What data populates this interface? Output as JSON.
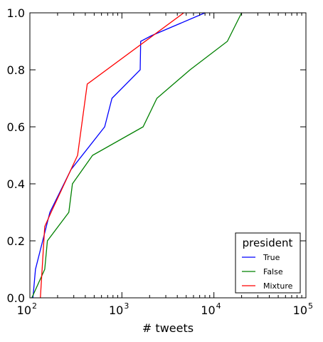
{
  "chart_data": {
    "type": "line",
    "xlabel": "# tweets",
    "ylabel": "",
    "xscale": "log",
    "xlim": [
      100,
      100000
    ],
    "ylim": [
      0.0,
      1.0
    ],
    "grid": false,
    "x_tick_labels": [
      {
        "value": 100,
        "base": "10",
        "exp": "2"
      },
      {
        "value": 1000,
        "base": "10",
        "exp": "3"
      },
      {
        "value": 10000,
        "base": "10",
        "exp": "4"
      },
      {
        "value": 100000,
        "base": "10",
        "exp": "5"
      }
    ],
    "y_ticks": [
      0.0,
      0.2,
      0.4,
      0.6,
      0.8,
      1.0
    ],
    "y_tick_labels": [
      "0.0",
      "0.2",
      "0.4",
      "0.6",
      "0.8",
      "1.0"
    ],
    "legend": {
      "title": "president",
      "placement": "lower-right"
    },
    "series": [
      {
        "name": "True",
        "color": "#0000ff",
        "points": [
          [
            108,
            0.0
          ],
          [
            115,
            0.1
          ],
          [
            165,
            0.3
          ],
          [
            280,
            0.45
          ],
          [
            650,
            0.6
          ],
          [
            780,
            0.7
          ],
          [
            1580,
            0.8
          ],
          [
            1600,
            0.9
          ],
          [
            2100,
            0.92
          ],
          [
            8000,
            1.0
          ]
        ]
      },
      {
        "name": "False",
        "color": "#008000",
        "points": [
          [
            105,
            0.0
          ],
          [
            145,
            0.1
          ],
          [
            155,
            0.2
          ],
          [
            265,
            0.3
          ],
          [
            290,
            0.4
          ],
          [
            480,
            0.5
          ],
          [
            1700,
            0.6
          ],
          [
            2400,
            0.7
          ],
          [
            5500,
            0.8
          ],
          [
            14000,
            0.9
          ],
          [
            20000,
            1.0
          ]
        ]
      },
      {
        "name": "Mixture",
        "color": "#ff0000",
        "points": [
          [
            130,
            0.0
          ],
          [
            145,
            0.25
          ],
          [
            170,
            0.3
          ],
          [
            330,
            0.5
          ],
          [
            420,
            0.75
          ],
          [
            4700,
            1.0
          ]
        ]
      }
    ]
  }
}
